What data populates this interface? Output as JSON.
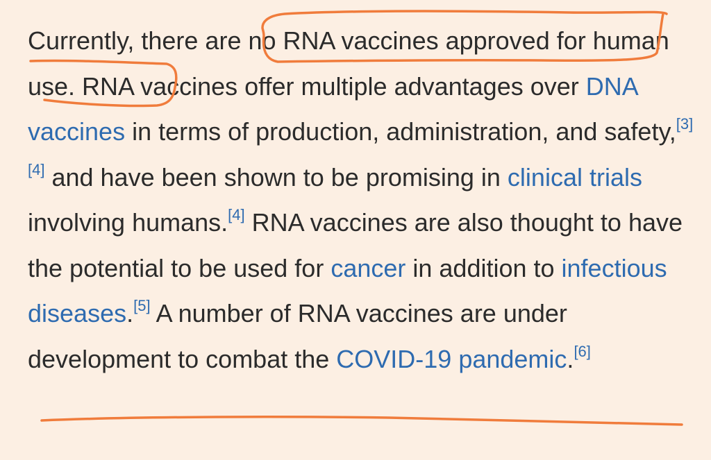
{
  "paragraph": {
    "t1": "Currently, there are ",
    "t2": "no RNA vaccines approved for",
    "t3": "human use.",
    "t4": " RNA vaccines offer multiple advantages over ",
    "link_dna": "DNA vaccines",
    "t5": " in terms of production, administration, and safety,",
    "ref3": "[3]",
    "ref4a": "[4]",
    "t6": " and have been shown to be promising in ",
    "link_clinical": "clinical trials",
    "t7": " involving humans.",
    "ref4b": "[4]",
    "t8": " RNA vaccines are also thought to have the potential to be used for ",
    "link_cancer": "cancer",
    "t9": " in addition to ",
    "link_infectious": "infectious diseases",
    "t10": ".",
    "ref5": "[5]",
    "t11": " A number of RNA vaccines are under ",
    "t12": "development to combat the ",
    "link_covid": "COVID-19 pandemic",
    "t13": ".",
    "ref6": "[6]"
  },
  "colors": {
    "background": "#fcefe3",
    "text": "#2b2b2b",
    "link": "#2e6bb0",
    "annotation": "#f07c3c"
  }
}
